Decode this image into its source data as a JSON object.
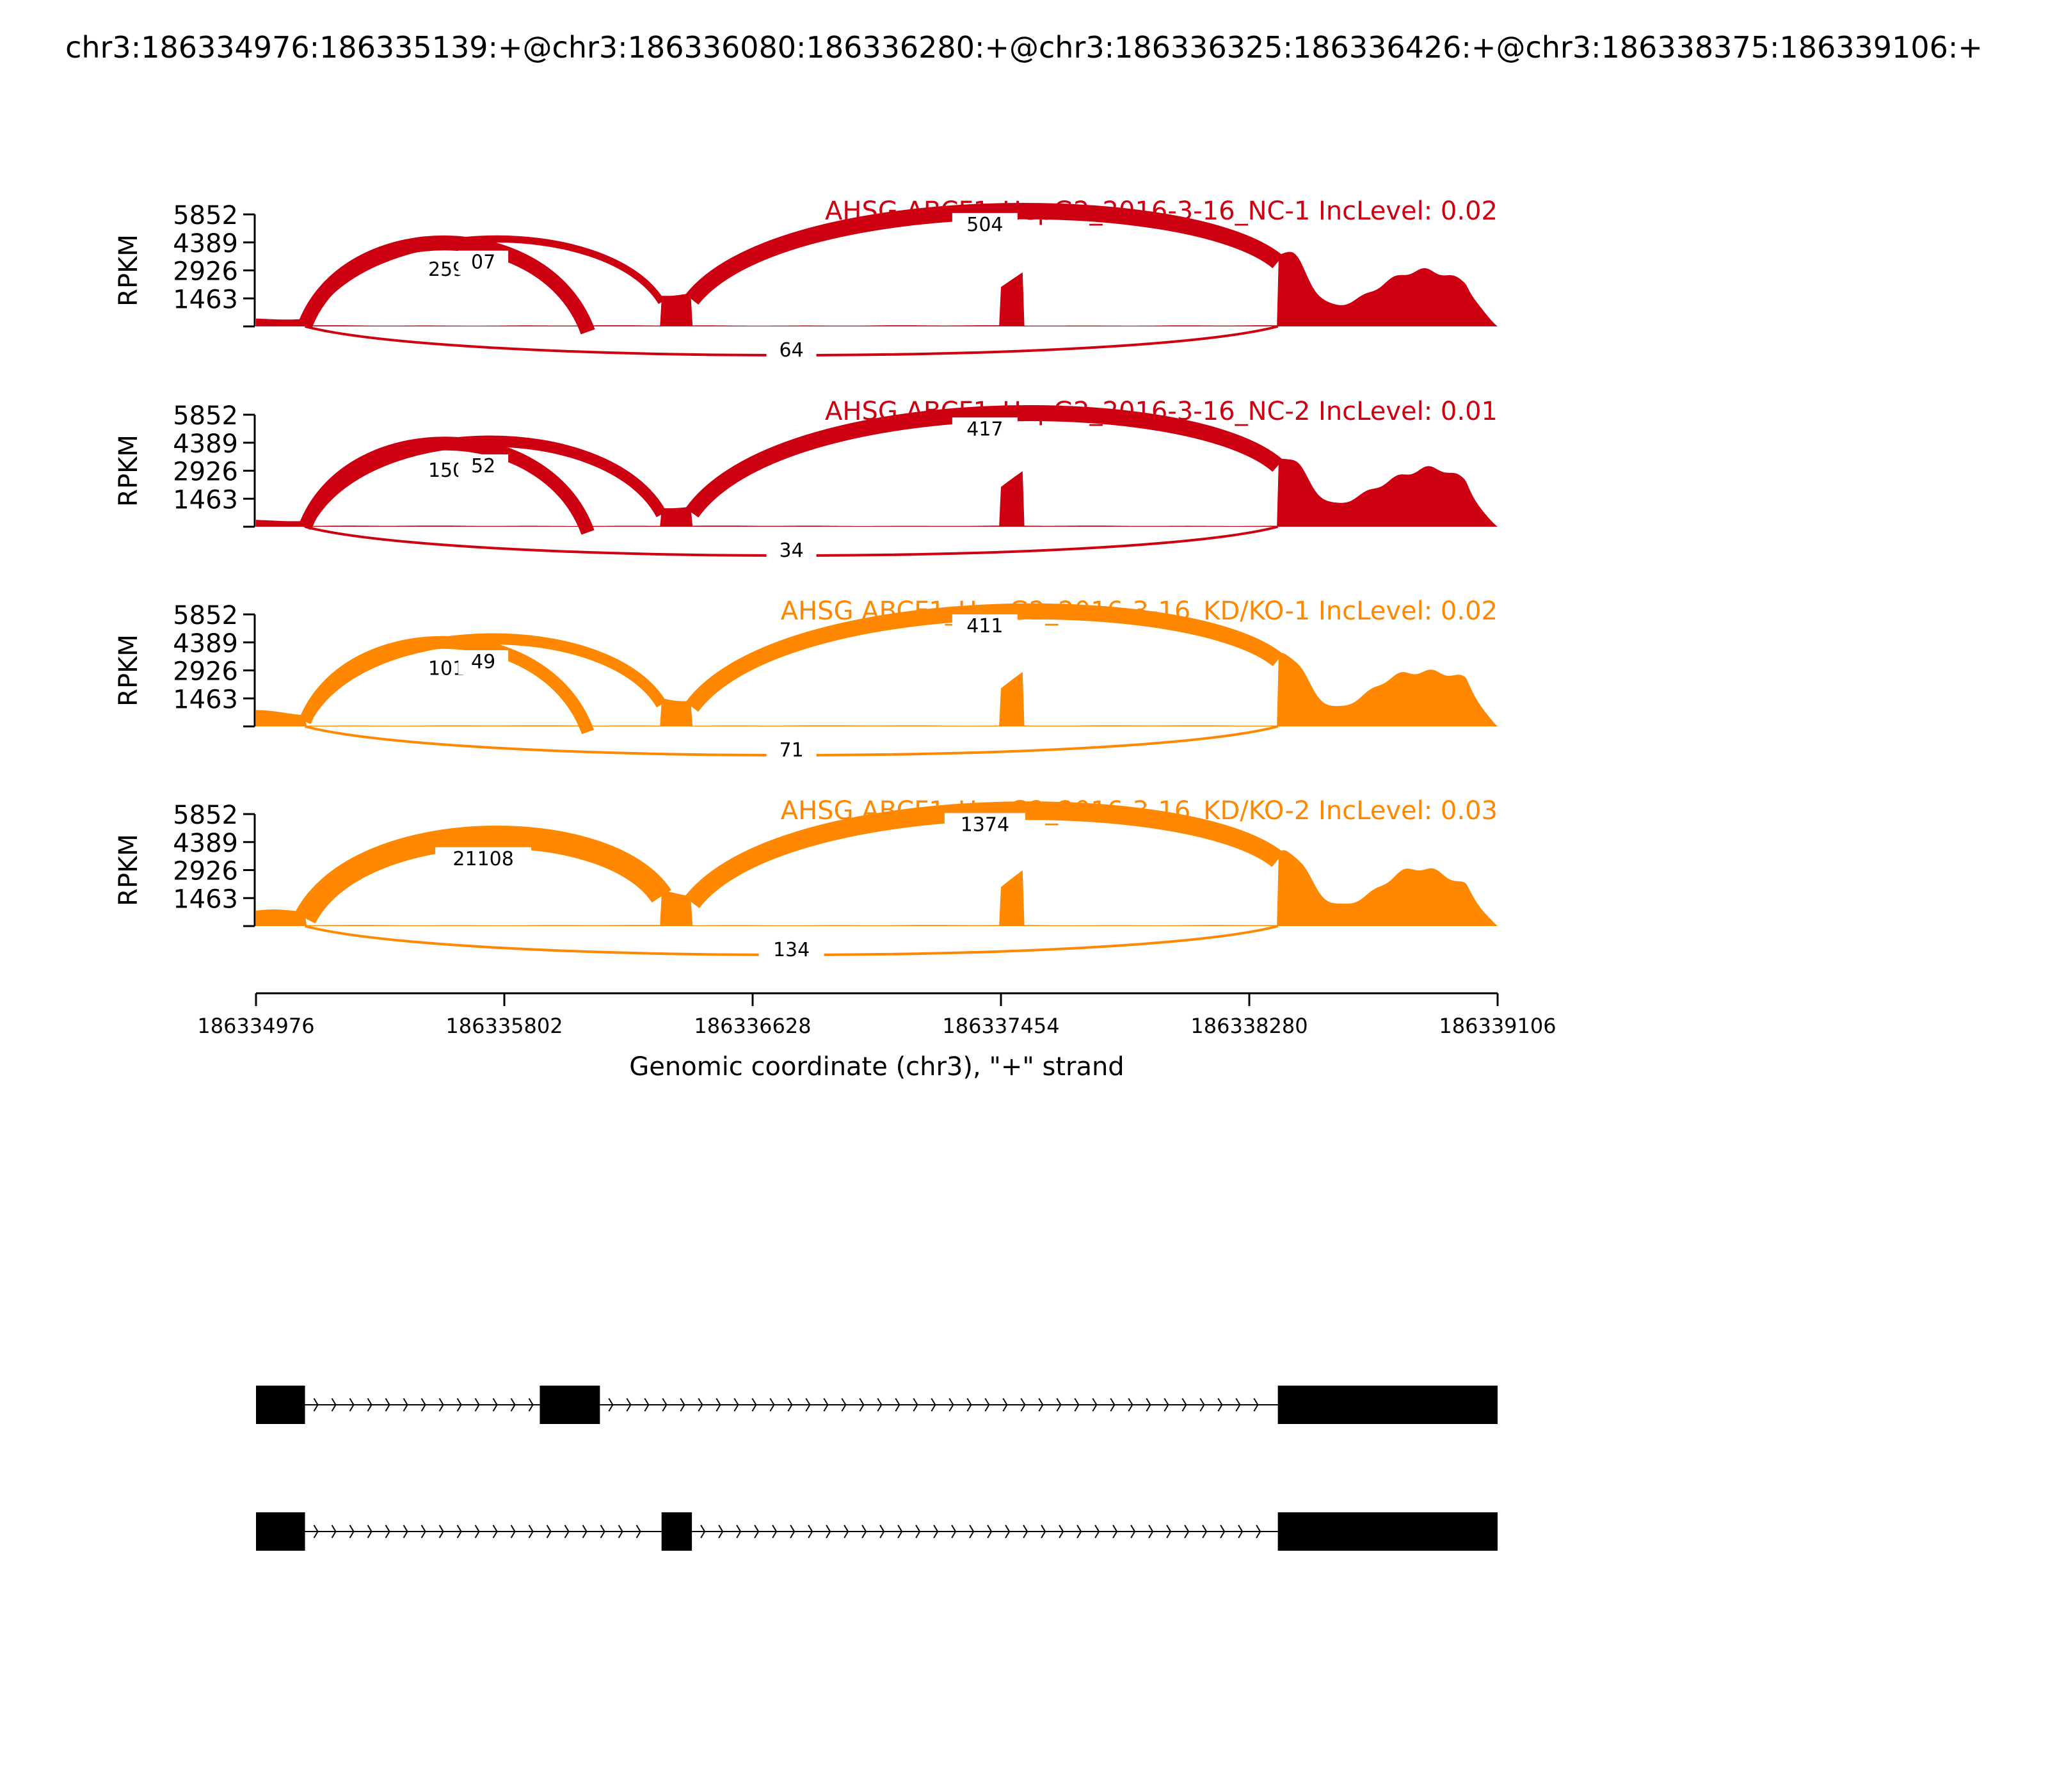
{
  "chart_data": {
    "type": "area",
    "title": "chr3:186334976:186335139:+@chr3:186336080:186336280:+@chr3:186336325:186336426:+@chr3:186338375:186339106:+",
    "xlabel": "Genomic coordinate (chr3), \"+\" strand",
    "ylabel": "RPKM",
    "xlim": [
      186334976,
      186339106
    ],
    "x_ticks": [
      "186334976",
      "186335802",
      "186336628",
      "186337454",
      "186338280",
      "186339106"
    ],
    "ylim": [
      0,
      5852
    ],
    "y_ticks": [
      "1463",
      "2926",
      "4389",
      "5852"
    ],
    "grid": false,
    "colors": {
      "nc": "#CC0011",
      "kd": "#FF8800",
      "structure": "#000000"
    },
    "exons": [
      {
        "start": 186334976,
        "end": 186335139
      },
      {
        "start": 186336080,
        "end": 186336280
      },
      {
        "start": 186336325,
        "end": 186336426
      },
      {
        "start": 186337454,
        "end": 186337530
      },
      {
        "start": 186338375,
        "end": 186339106
      }
    ],
    "series": [
      {
        "name": "AHSG ABCF1_HepG2_2016-3-16_NC-1 IncLevel: 0.02",
        "color": "#CC0011",
        "junctions": [
          {
            "label": "259",
            "start": 186335139,
            "end": 186336080,
            "side": "above"
          },
          {
            "label": "07",
            "start": 186335139,
            "end": 186336325,
            "side": "above"
          },
          {
            "label": "504",
            "start": 186336426,
            "end": 186338375,
            "side": "above"
          },
          {
            "label": "64",
            "start": 186335139,
            "end": 186338375,
            "side": "below"
          }
        ]
      },
      {
        "name": "AHSG ABCF1_HepG2_2016-3-16_NC-2 IncLevel: 0.01",
        "color": "#CC0011",
        "junctions": [
          {
            "label": "150",
            "start": 186335139,
            "end": 186336080,
            "side": "above"
          },
          {
            "label": "52",
            "start": 186335139,
            "end": 186336325,
            "side": "above"
          },
          {
            "label": "417",
            "start": 186336426,
            "end": 186338375,
            "side": "above"
          },
          {
            "label": "34",
            "start": 186335139,
            "end": 186338375,
            "side": "below"
          }
        ]
      },
      {
        "name": "AHSG ABCF1_HepG2_2016-3-16_KD/KO-1 IncLevel: 0.02",
        "color": "#FF8800",
        "junctions": [
          {
            "label": "101",
            "start": 186335139,
            "end": 186336080,
            "side": "above"
          },
          {
            "label": "49",
            "start": 186335139,
            "end": 186336325,
            "side": "above"
          },
          {
            "label": "411",
            "start": 186336426,
            "end": 186338375,
            "side": "above"
          },
          {
            "label": "71",
            "start": 186335139,
            "end": 186338375,
            "side": "below"
          }
        ]
      },
      {
        "name": "AHSG ABCF1_HepG2_2016-3-16_KD/KO-2 IncLevel: 0.03",
        "color": "#FF8800",
        "junctions": [
          {
            "label": "21108",
            "start": 186335139,
            "end": 186336325,
            "side": "above"
          },
          {
            "label": "1374",
            "start": 186336426,
            "end": 186338375,
            "side": "above"
          },
          {
            "label": "134",
            "start": 186335139,
            "end": 186338375,
            "side": "below"
          }
        ]
      }
    ],
    "isoforms": [
      {
        "exons": [
          [
            186334976,
            186335139
          ],
          [
            186335920,
            186336120
          ],
          [
            186338375,
            186339106
          ]
        ]
      },
      {
        "exons": [
          [
            186334976,
            186335139
          ],
          [
            186336325,
            186336426
          ],
          [
            186338375,
            186339106
          ]
        ]
      }
    ]
  }
}
